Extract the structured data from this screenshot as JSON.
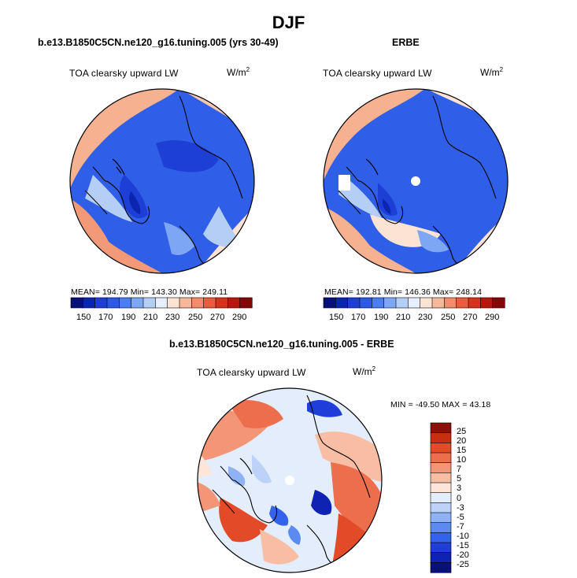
{
  "page": {
    "title": "DJF"
  },
  "colors": {
    "abs_scale": [
      "#08107a",
      "#0a26b0",
      "#1d3fd6",
      "#2c59e8",
      "#4a7ef2",
      "#7da7f5",
      "#b5cef5",
      "#e6efff",
      "#fde3d3",
      "#f9b89a",
      "#f28c6c",
      "#ea5c3e",
      "#d9321b",
      "#b8170d",
      "#830709"
    ],
    "diff_scale": [
      "#0a1077",
      "#0f22b2",
      "#1f3ed9",
      "#3363ea",
      "#5b8bef",
      "#8eb2f5",
      "#bcd3f7",
      "#e3edfc",
      "#fde5d7",
      "#f8bea3",
      "#f29677",
      "#ec6e4c",
      "#e24a28",
      "#c82e11",
      "#8c1008"
    ],
    "ocean_blue": "#2f5fe6",
    "land_cold": "#1f3ed9",
    "warm": "#ef7a55"
  },
  "chart_data": [
    {
      "type": "heatmap",
      "projection": "north-polar-stereographic",
      "title": "b.e13.B1850C5CN.ne120_g16.tuning.005 (yrs 30-49)",
      "field": "TOA clearsky upward LW",
      "units": "W/m",
      "units_exp": "2",
      "stats": {
        "mean": 194.79,
        "min": 143.3,
        "max": 249.11
      },
      "stats_text": "MEAN= 194.79   Min= 143.30   Max= 249.11",
      "colorbar": {
        "orientation": "horizontal",
        "tick_labels": [
          "150",
          "170",
          "190",
          "210",
          "230",
          "250",
          "270",
          "290"
        ],
        "levels": [
          150,
          160,
          170,
          180,
          190,
          200,
          210,
          220,
          230,
          240,
          250,
          260,
          270,
          280,
          290
        ]
      }
    },
    {
      "type": "heatmap",
      "projection": "north-polar-stereographic",
      "title": "ERBE",
      "field": "TOA clearsky upward LW",
      "units": "W/m",
      "units_exp": "2",
      "stats": {
        "mean": 192.81,
        "min": 146.36,
        "max": 248.14
      },
      "stats_text": "MEAN= 192.81   Min= 146.36   Max= 248.14",
      "colorbar": {
        "orientation": "horizontal",
        "tick_labels": [
          "150",
          "170",
          "190",
          "210",
          "230",
          "250",
          "270",
          "290"
        ],
        "levels": [
          150,
          160,
          170,
          180,
          190,
          200,
          210,
          220,
          230,
          240,
          250,
          260,
          270,
          280,
          290
        ]
      }
    },
    {
      "type": "heatmap",
      "projection": "north-polar-stereographic",
      "title": "b.e13.B1850C5CN.ne120_g16.tuning.005 - ERBE",
      "field": "TOA clearsky upward LW",
      "units": "W/m",
      "units_exp": "2",
      "stats": {
        "min": -49.5,
        "max": 43.18
      },
      "stats_text": "MIN = -49.50  MAX =  43.18",
      "colorbar": {
        "orientation": "vertical",
        "tick_labels": [
          "25",
          "20",
          "15",
          "10",
          "7",
          "5",
          "3",
          "0",
          "-3",
          "-5",
          "-7",
          "-10",
          "-15",
          "-20",
          "-25"
        ]
      }
    }
  ]
}
